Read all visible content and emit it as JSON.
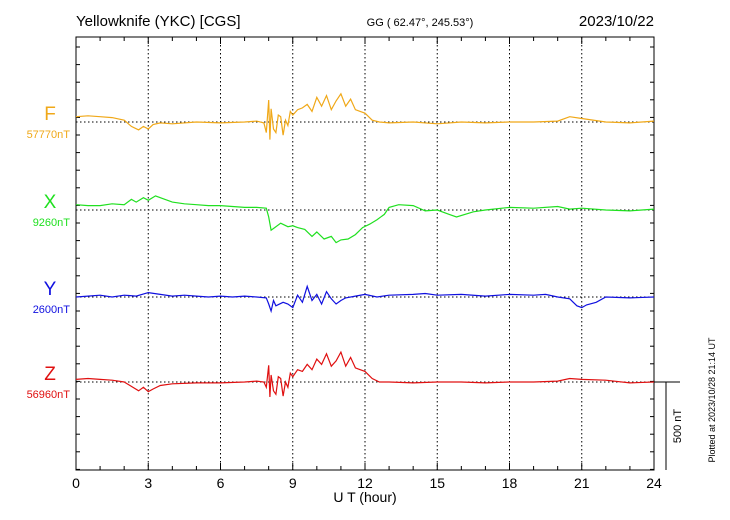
{
  "header": {
    "station": "Yellowknife (YKC)  [CGS]",
    "coords": "GG ( 62.47°, 245.53°)",
    "date": "2023/10/22"
  },
  "footer": {
    "plotted": "Plotted at 2023/10/28 21:14 UT"
  },
  "chart_data": {
    "type": "line",
    "title": "Yellowknife (YKC)  [CGS]",
    "xlabel": "U T (hour)",
    "ylabel": "",
    "xlim": [
      0,
      24
    ],
    "x_ticks": [
      0,
      3,
      6,
      9,
      12,
      15,
      18,
      21,
      24
    ],
    "x_tick_labels": [
      "0",
      "3",
      "6",
      "9",
      "12",
      "15",
      "18",
      "21",
      "24"
    ],
    "grid": true,
    "scale_bar": {
      "label": "500 nT",
      "value_nT": 500
    },
    "series": [
      {
        "name": "F",
        "baseline_label": "57770nT",
        "baseline_nT": 57770,
        "color": "#f0a818",
        "x": [
          0,
          0.5,
          1,
          1.5,
          2,
          2.3,
          2.6,
          2.8,
          3.0,
          3.2,
          3.5,
          4,
          5,
          6,
          7,
          7.5,
          7.8,
          7.9,
          8.0,
          8.05,
          8.1,
          8.2,
          8.3,
          8.4,
          8.5,
          8.6,
          8.7,
          8.8,
          8.9,
          9.0,
          9.2,
          9.4,
          9.6,
          9.8,
          10.0,
          10.2,
          10.4,
          10.6,
          10.8,
          11.0,
          11.2,
          11.4,
          11.6,
          11.8,
          12.0,
          12.3,
          12.6,
          13,
          14,
          15,
          16,
          17,
          18,
          19,
          20,
          20.5,
          21,
          22,
          23,
          24
        ],
        "y": [
          30,
          35,
          30,
          25,
          10,
          -25,
          -45,
          -25,
          -40,
          -15,
          -5,
          -10,
          0,
          -5,
          0,
          5,
          -5,
          -60,
          125,
          -100,
          75,
          -40,
          -60,
          40,
          30,
          -75,
          10,
          -20,
          60,
          40,
          70,
          80,
          100,
          60,
          140,
          90,
          150,
          70,
          120,
          160,
          90,
          130,
          70,
          60,
          50,
          10,
          0,
          -5,
          0,
          -10,
          0,
          -5,
          0,
          0,
          5,
          30,
          20,
          0,
          -5,
          5
        ]
      },
      {
        "name": "X",
        "baseline_label": "9260nT",
        "baseline_nT": 9260,
        "color": "#20e020",
        "x": [
          0,
          0.5,
          1,
          1.5,
          2,
          2.3,
          2.5,
          2.8,
          3.0,
          3.3,
          3.6,
          4,
          4.5,
          5,
          5.5,
          6,
          6.5,
          7,
          7.5,
          7.9,
          8.0,
          8.1,
          8.2,
          8.5,
          8.8,
          9.0,
          9.2,
          9.5,
          9.8,
          10.0,
          10.3,
          10.6,
          10.8,
          11.0,
          11.3,
          11.6,
          11.9,
          12.2,
          12.5,
          12.8,
          13.0,
          13.4,
          14,
          14.5,
          15,
          15.5,
          15.8,
          16.5,
          17,
          18,
          19,
          20,
          20.5,
          21,
          22,
          23,
          24
        ],
        "y": [
          30,
          25,
          25,
          35,
          30,
          60,
          45,
          70,
          55,
          80,
          65,
          45,
          35,
          30,
          25,
          25,
          20,
          15,
          15,
          10,
          -40,
          -115,
          -105,
          -75,
          -95,
          -90,
          -100,
          -110,
          -150,
          -125,
          -165,
          -150,
          -185,
          -170,
          -165,
          -140,
          -100,
          -80,
          -55,
          -25,
          15,
          30,
          25,
          -5,
          0,
          -25,
          -40,
          -10,
          0,
          15,
          10,
          20,
          5,
          10,
          0,
          -5,
          5
        ]
      },
      {
        "name": "Y",
        "baseline_label": "2600nT",
        "baseline_nT": 2600,
        "color": "#1010e0",
        "x": [
          0,
          0.5,
          1,
          1.5,
          2,
          2.5,
          3,
          3.5,
          4,
          4.5,
          5,
          5.5,
          6,
          6.5,
          7,
          7.5,
          7.9,
          8.0,
          8.1,
          8.2,
          8.3,
          8.6,
          8.8,
          9.0,
          9.2,
          9.4,
          9.6,
          9.8,
          10.0,
          10.2,
          10.4,
          10.6,
          10.8,
          11.0,
          11.2,
          11.6,
          12.0,
          12.5,
          13,
          14,
          14.5,
          15,
          16,
          17,
          18,
          19,
          19.5,
          20,
          20.5,
          20.8,
          21.0,
          21.2,
          21.6,
          22,
          23,
          24
        ],
        "y": [
          0,
          5,
          10,
          0,
          10,
          5,
          25,
          15,
          5,
          10,
          5,
          0,
          5,
          0,
          5,
          0,
          -5,
          -40,
          -80,
          -20,
          -50,
          -30,
          -40,
          -60,
          10,
          -30,
          60,
          -20,
          15,
          -40,
          30,
          -10,
          -40,
          -20,
          -5,
          5,
          15,
          0,
          10,
          15,
          20,
          10,
          15,
          5,
          15,
          10,
          15,
          0,
          -10,
          -50,
          -60,
          -45,
          -30,
          0,
          -5,
          0
        ]
      },
      {
        "name": "Z",
        "baseline_label": "56960nT",
        "baseline_nT": 56960,
        "color": "#e01010",
        "x": [
          0,
          0.5,
          1,
          1.5,
          2,
          2.3,
          2.6,
          2.8,
          3.0,
          3.2,
          3.5,
          4,
          5,
          6,
          7,
          7.5,
          7.8,
          7.9,
          8.0,
          8.05,
          8.1,
          8.2,
          8.3,
          8.4,
          8.5,
          8.6,
          8.7,
          8.8,
          8.9,
          9.0,
          9.2,
          9.4,
          9.6,
          9.8,
          10.0,
          10.2,
          10.4,
          10.6,
          10.8,
          11.0,
          11.2,
          11.4,
          11.6,
          11.8,
          12.0,
          12.3,
          12.6,
          13,
          14,
          15,
          16,
          17,
          18,
          19,
          20,
          20.5,
          21,
          22,
          23,
          24
        ],
        "y": [
          15,
          20,
          15,
          10,
          0,
          -25,
          -50,
          -30,
          -55,
          -40,
          -20,
          -10,
          -5,
          -5,
          0,
          5,
          0,
          -30,
          95,
          -85,
          40,
          -50,
          -70,
          30,
          20,
          -80,
          0,
          -30,
          50,
          30,
          70,
          60,
          100,
          70,
          130,
          100,
          160,
          90,
          120,
          170,
          90,
          140,
          80,
          70,
          60,
          20,
          0,
          0,
          -5,
          0,
          0,
          -5,
          0,
          0,
          5,
          20,
          15,
          10,
          -5,
          0
        ]
      }
    ]
  }
}
